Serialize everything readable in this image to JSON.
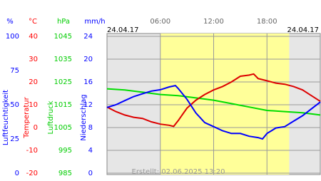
{
  "chart_data": {
    "type": "line",
    "date_left": "24.04.17",
    "date_right": "24.04.17",
    "footer": "Erstellt: 02.06.2025 13:20",
    "xlim": [
      0,
      24
    ],
    "xticks": [
      {
        "value": 6,
        "label": "06:00"
      },
      {
        "value": 12,
        "label": "12:00"
      },
      {
        "value": 18,
        "label": "18:00"
      }
    ],
    "daylight": [
      6,
      20.5
    ],
    "grid": true,
    "axes": [
      {
        "unit": "%",
        "title": "Luftfeuchtigkeit",
        "color": "#0000ff",
        "lim": [
          0,
          100
        ],
        "ticks": [
          100,
          75,
          50,
          25,
          0
        ]
      },
      {
        "unit": "°C",
        "title": "Temperatur",
        "color": "#ff0000",
        "lim": [
          -20,
          40
        ],
        "ticks": [
          40,
          30,
          20,
          10,
          0,
          -10,
          -20
        ]
      },
      {
        "unit": "hPa",
        "title": "Luftdruck",
        "color": "#00cc00",
        "lim": [
          985,
          1045
        ],
        "ticks": [
          1045,
          1035,
          1025,
          1015,
          1005,
          995,
          985
        ]
      },
      {
        "unit": "mm/h",
        "title": "Niederschlag",
        "color": "#0000ff",
        "lim": [
          0,
          24
        ],
        "ticks": [
          24,
          20,
          16,
          12,
          8,
          4,
          0
        ]
      }
    ],
    "series": [
      {
        "axis": 2,
        "color": "#00dd00",
        "x": [
          0,
          2,
          4,
          6,
          8,
          10,
          12,
          14,
          16,
          18,
          20,
          22,
          24
        ],
        "values": [
          1022,
          1021.5,
          1020.5,
          1019.5,
          1019,
          1018,
          1017,
          1015.5,
          1014,
          1012.5,
          1012,
          1011.5,
          1010.5
        ]
      },
      {
        "axis": 1,
        "color": "#dd0000",
        "x": [
          0,
          1,
          2,
          3,
          4,
          5,
          6,
          7,
          7.5,
          8,
          9,
          10,
          11,
          12,
          13,
          14,
          15,
          16,
          16.5,
          17,
          18,
          19,
          20,
          21,
          22,
          23,
          24
        ],
        "values": [
          9,
          7,
          5.5,
          4.5,
          4,
          2.5,
          1.5,
          1,
          0.5,
          3,
          8.5,
          12,
          14.5,
          16.5,
          18,
          20,
          22.5,
          23,
          23.5,
          21.5,
          20.5,
          19.5,
          19,
          18,
          16.5,
          14,
          11.5
        ]
      },
      {
        "axis": 0,
        "color": "#0000ff",
        "x": [
          0,
          1,
          2,
          3,
          4,
          5,
          6,
          7,
          7.7,
          8,
          9,
          10,
          11,
          12,
          13,
          14,
          15,
          16,
          17,
          17.5,
          18,
          19,
          20,
          21,
          22,
          23,
          24
        ],
        "values": [
          48,
          50,
          53,
          56,
          58,
          60,
          61,
          63,
          64,
          62,
          54,
          44,
          37,
          34,
          31,
          29,
          29,
          27,
          26,
          25,
          29,
          33,
          34,
          38,
          42,
          47,
          52
        ]
      }
    ]
  }
}
